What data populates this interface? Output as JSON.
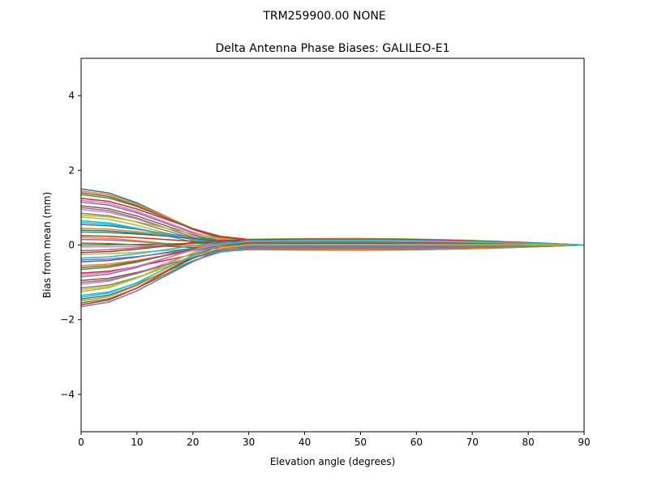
{
  "chart_data": {
    "type": "line",
    "suptitle": "TRM259900.00    NONE",
    "title": "Delta Antenna Phase Biases: GALILEO-E1",
    "xlabel": "Elevation angle (degrees)",
    "ylabel": "Bias from mean (mm)",
    "xlim": [
      0,
      90
    ],
    "ylim": [
      -5,
      5
    ],
    "xticks": [
      0,
      10,
      20,
      30,
      40,
      50,
      60,
      70,
      80,
      90
    ],
    "yticks": [
      -4,
      -2,
      0,
      2,
      4
    ],
    "xtick_labels": [
      "0",
      "10",
      "20",
      "30",
      "40",
      "50",
      "60",
      "70",
      "80",
      "90"
    ],
    "ytick_labels": [
      "−4",
      "−2",
      "0",
      "2",
      "4"
    ],
    "grid": false,
    "legend": "none",
    "x": [
      0,
      5,
      10,
      15,
      20,
      25,
      30,
      35,
      40,
      45,
      50,
      55,
      60,
      65,
      70,
      75,
      80,
      85,
      90
    ],
    "color_cycle": [
      "#1f77b4",
      "#ff7f0e",
      "#2ca02c",
      "#d62728",
      "#9467bd",
      "#8c564b",
      "#e377c2",
      "#7f7f7f",
      "#bcbd22",
      "#17becf"
    ],
    "series_note_start_values": [
      1.5,
      1.45,
      1.35,
      1.25,
      1.15,
      1.05,
      0.95,
      0.85,
      0.75,
      0.65,
      0.55,
      0.45,
      0.35,
      0.25,
      0.15,
      0.05,
      -0.05,
      -0.15,
      -0.25,
      -0.35,
      -0.45,
      -0.55,
      -0.65,
      -0.75,
      -0.85,
      -0.95,
      -1.05,
      -1.15,
      -1.25,
      -1.35,
      -1.45,
      -1.5,
      -1.55,
      -1.6,
      -1.65,
      1.4,
      1.2,
      1.0,
      0.8,
      0.6,
      0.4,
      0.2,
      0.0,
      -0.2,
      -0.4,
      -0.6,
      -0.8,
      -1.0,
      -1.2,
      -1.4
    ],
    "series_mid_values": [
      0.1,
      0.15,
      0.2,
      0.25,
      0.05,
      0.0,
      -0.05,
      -0.1,
      -0.15,
      -0.2,
      0.12,
      0.18,
      0.22,
      0.08,
      -0.12,
      -0.18,
      0.02,
      0.24,
      -0.08,
      0.16,
      0.06,
      -0.02,
      0.14,
      -0.14,
      0.2,
      -0.2,
      0.1,
      -0.1,
      0.26,
      -0.16,
      0.04,
      0.18,
      -0.06,
      0.22,
      -0.04,
      0.12,
      0.08,
      -0.12,
      0.2,
      0.0,
      0.14,
      -0.18,
      0.1,
      0.24,
      -0.08,
      0.06,
      0.16,
      -0.14,
      0.02,
      0.2
    ]
  }
}
